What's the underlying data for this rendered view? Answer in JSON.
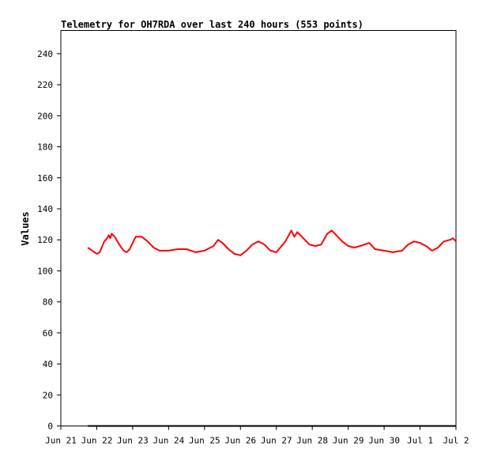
{
  "chart_data": {
    "type": "line",
    "title": "Telemetry for OH7RDA over last 240 hours (553 points)",
    "xlabel": "",
    "ylabel": "Values",
    "xlim": [
      "2025-06-21",
      "2025-07-02"
    ],
    "ylim": [
      0,
      255
    ],
    "y_ticks": [
      0,
      20,
      40,
      60,
      80,
      100,
      120,
      140,
      160,
      180,
      200,
      220,
      240
    ],
    "x_ticks": [
      {
        "date": "2025-06-21",
        "label": "Jun 21"
      },
      {
        "date": "2025-06-22",
        "label": "Jun 22"
      },
      {
        "date": "2025-06-23",
        "label": "Jun 23"
      },
      {
        "date": "2025-06-24",
        "label": "Jun 24"
      },
      {
        "date": "2025-06-25",
        "label": "Jun 25"
      },
      {
        "date": "2025-06-26",
        "label": "Jun 26"
      },
      {
        "date": "2025-06-27",
        "label": "Jun 27"
      },
      {
        "date": "2025-06-28",
        "label": "Jun 28"
      },
      {
        "date": "2025-06-29",
        "label": "Jun 29"
      },
      {
        "date": "2025-06-30",
        "label": "Jun 30"
      },
      {
        "date": "2025-07-01",
        "label": "Jul 1"
      },
      {
        "date": "2025-07-02",
        "label": "Jul 2"
      }
    ],
    "grid": false,
    "legend": "none",
    "series": [
      {
        "color": "#ff0000",
        "points": [
          [
            "2025-06-21T18:00",
            115
          ],
          [
            "2025-06-21T21:00",
            113
          ],
          [
            "2025-06-22T00:00",
            111
          ],
          [
            "2025-06-22T02:00",
            112
          ],
          [
            "2025-06-22T05:00",
            119
          ],
          [
            "2025-06-22T07:00",
            121
          ],
          [
            "2025-06-22T08:00",
            123
          ],
          [
            "2025-06-22T09:00",
            121
          ],
          [
            "2025-06-22T10:00",
            124
          ],
          [
            "2025-06-22T12:00",
            122
          ],
          [
            "2025-06-22T15:00",
            117
          ],
          [
            "2025-06-22T18:00",
            113
          ],
          [
            "2025-06-22T20:00",
            112
          ],
          [
            "2025-06-22T22:00",
            114
          ],
          [
            "2025-06-23T02:00",
            122
          ],
          [
            "2025-06-23T06:00",
            122
          ],
          [
            "2025-06-23T10:00",
            119
          ],
          [
            "2025-06-23T14:00",
            115
          ],
          [
            "2025-06-23T18:00",
            113
          ],
          [
            "2025-06-24T00:00",
            113
          ],
          [
            "2025-06-24T06:00",
            114
          ],
          [
            "2025-06-24T12:00",
            114
          ],
          [
            "2025-06-24T18:00",
            112
          ],
          [
            "2025-06-25T00:00",
            113
          ],
          [
            "2025-06-25T06:00",
            116
          ],
          [
            "2025-06-25T09:00",
            120
          ],
          [
            "2025-06-25T12:00",
            118
          ],
          [
            "2025-06-25T16:00",
            114
          ],
          [
            "2025-06-25T20:00",
            111
          ],
          [
            "2025-06-26T00:00",
            110
          ],
          [
            "2025-06-26T04:00",
            113
          ],
          [
            "2025-06-26T08:00",
            117
          ],
          [
            "2025-06-26T12:00",
            119
          ],
          [
            "2025-06-26T16:00",
            117
          ],
          [
            "2025-06-26T20:00",
            113
          ],
          [
            "2025-06-27T00:00",
            112
          ],
          [
            "2025-06-27T06:00",
            119
          ],
          [
            "2025-06-27T10:00",
            126
          ],
          [
            "2025-06-27T12:00",
            122
          ],
          [
            "2025-06-27T14:00",
            125
          ],
          [
            "2025-06-27T18:00",
            121
          ],
          [
            "2025-06-27T22:00",
            117
          ],
          [
            "2025-06-28T02:00",
            116
          ],
          [
            "2025-06-28T06:00",
            117
          ],
          [
            "2025-06-28T10:00",
            124
          ],
          [
            "2025-06-28T13:00",
            126
          ],
          [
            "2025-06-28T16:00",
            123
          ],
          [
            "2025-06-28T20:00",
            119
          ],
          [
            "2025-06-29T00:00",
            116
          ],
          [
            "2025-06-29T04:00",
            115
          ],
          [
            "2025-06-29T08:00",
            116
          ],
          [
            "2025-06-29T14:00",
            118
          ],
          [
            "2025-06-29T18:00",
            114
          ],
          [
            "2025-06-30T00:00",
            113
          ],
          [
            "2025-06-30T06:00",
            112
          ],
          [
            "2025-06-30T12:00",
            113
          ],
          [
            "2025-06-30T16:00",
            117
          ],
          [
            "2025-06-30T20:00",
            119
          ],
          [
            "2025-07-01T00:00",
            118
          ],
          [
            "2025-07-01T04:00",
            116
          ],
          [
            "2025-07-01T08:00",
            113
          ],
          [
            "2025-07-01T12:00",
            115
          ],
          [
            "2025-07-01T16:00",
            119
          ],
          [
            "2025-07-01T20:00",
            120
          ],
          [
            "2025-07-01T22:00",
            121
          ],
          [
            "2025-07-02T00:00",
            119
          ]
        ]
      },
      {
        "color": "#000000",
        "points": [
          [
            "2025-06-21T18:00",
            0
          ],
          [
            "2025-07-02T00:00",
            0
          ]
        ]
      }
    ]
  }
}
